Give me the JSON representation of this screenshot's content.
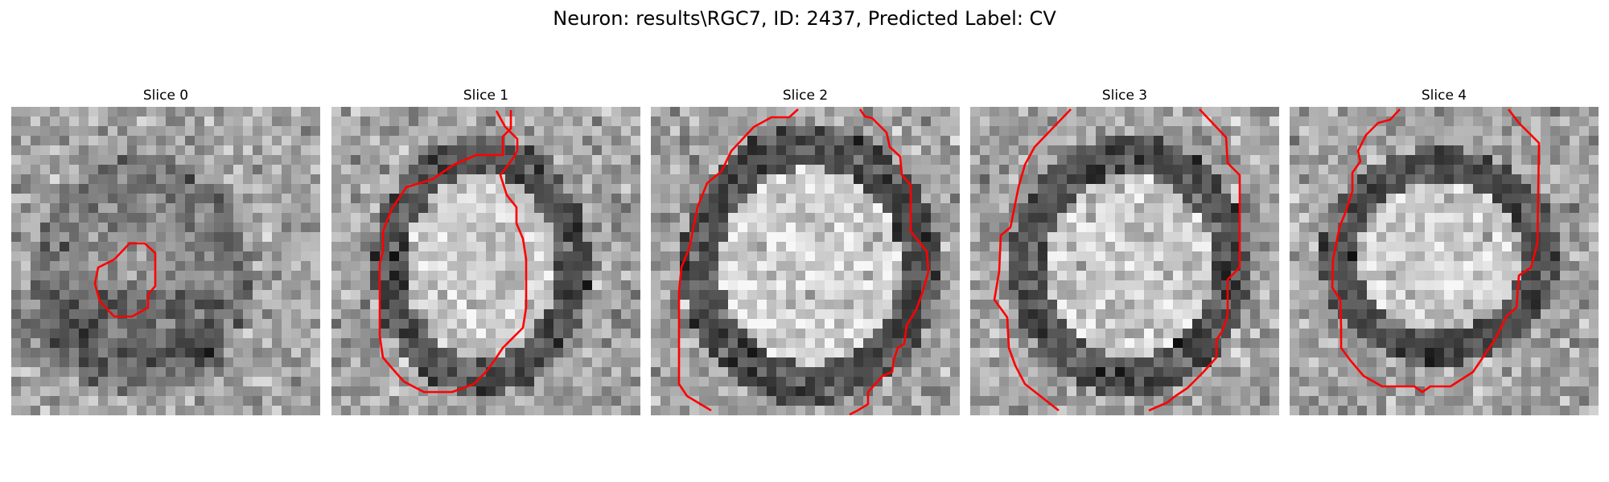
{
  "figure": {
    "title": "Neuron: results\\RGC7, ID: 2437, Predicted Label: CV"
  },
  "colors": {
    "contour": "#ff0000",
    "background": "#ffffff"
  },
  "slices": [
    {
      "title": "Slice 0"
    },
    {
      "title": "Slice 1"
    },
    {
      "title": "Slice 2"
    },
    {
      "title": "Slice 3"
    },
    {
      "title": "Slice 4"
    }
  ]
}
